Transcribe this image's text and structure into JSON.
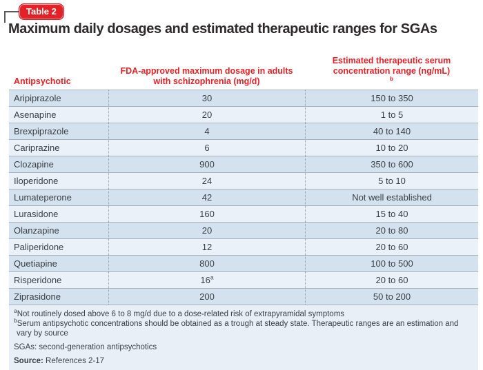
{
  "badge": {
    "label": "Table 2"
  },
  "title": "Maximum daily dosages and estimated therapeutic ranges for SGAs",
  "table": {
    "headers": {
      "col1": "Antipsychotic",
      "col2": "FDA-approved maximum dosage in adults with schizophrenia (mg/d)",
      "col3": "Estimated therapeutic serum concentration range (ng/mL)",
      "col3_sup": "b"
    },
    "rows": [
      {
        "drug": "Aripiprazole",
        "dose": "30",
        "dose_sup": "",
        "range": "150 to 350"
      },
      {
        "drug": "Asenapine",
        "dose": "20",
        "dose_sup": "",
        "range": "1 to 5"
      },
      {
        "drug": "Brexpiprazole",
        "dose": "4",
        "dose_sup": "",
        "range": "40 to 140"
      },
      {
        "drug": "Cariprazine",
        "dose": "6",
        "dose_sup": "",
        "range": "10 to 20"
      },
      {
        "drug": "Clozapine",
        "dose": "900",
        "dose_sup": "",
        "range": "350 to 600"
      },
      {
        "drug": "Iloperidone",
        "dose": "24",
        "dose_sup": "",
        "range": "5 to 10"
      },
      {
        "drug": "Lumateperone",
        "dose": "42",
        "dose_sup": "",
        "range": "Not well established"
      },
      {
        "drug": "Lurasidone",
        "dose": "160",
        "dose_sup": "",
        "range": "15 to 40"
      },
      {
        "drug": "Olanzapine",
        "dose": "20",
        "dose_sup": "",
        "range": "20 to 80"
      },
      {
        "drug": "Paliperidone",
        "dose": "12",
        "dose_sup": "",
        "range": "20 to 60"
      },
      {
        "drug": "Quetiapine",
        "dose": "800",
        "dose_sup": "",
        "range": "100 to 500"
      },
      {
        "drug": "Risperidone",
        "dose": "16",
        "dose_sup": "a",
        "range": "20 to 60"
      },
      {
        "drug": "Ziprasidone",
        "dose": "200",
        "dose_sup": "",
        "range": "50 to 200"
      }
    ]
  },
  "footnotes": {
    "a_sup": "a",
    "a_text": "Not routinely dosed above 6 to 8 mg/d due to a dose-related risk of extrapyramidal symptoms",
    "b_sup": "b",
    "b_text": "Serum antipsychotic concentrations should be obtained as a trough at steady state. Therapeutic ranges are an estimation and vary by source",
    "sgas": "SGAs: second-generation antipsychotics",
    "source_label": "Source:",
    "source_text": " References 2-17"
  },
  "colors": {
    "accent_red": "#e32126",
    "row_dark": "#d4e2ef",
    "row_light": "#eaf1f8",
    "footnote_panel": "#e8eff6",
    "row_border": "#a7b1bb",
    "title_text": "#2d2a2b",
    "body_text": "#393e43"
  }
}
